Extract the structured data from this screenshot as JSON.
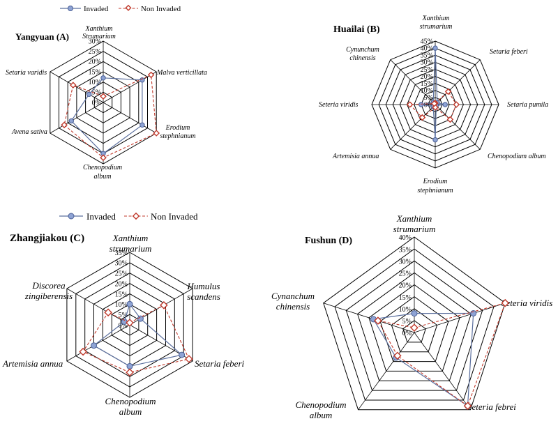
{
  "legend": {
    "invaded": "Invaded",
    "non_invaded": "Non Invaded"
  },
  "colors": {
    "invaded_line": "#5b6f9e",
    "invaded_marker": "#8ea3d4",
    "non_invaded": "#c0392b"
  },
  "chart_data": [
    {
      "type": "radar",
      "title": "Yangyuan (A)",
      "tick_labels": [
        "0%",
        "5%",
        "10%",
        "15%",
        "20%",
        "25%",
        "30%"
      ],
      "rmax": 30,
      "categories": [
        "Xanthium Strumarium",
        "Malva verticillata",
        "Erodium stephnianum",
        "Chenopodium album",
        "Avena sativa",
        "Setaria varidis"
      ],
      "series": [
        {
          "name": "Invaded",
          "values": [
            12,
            22,
            22,
            25,
            18,
            8
          ]
        },
        {
          "name": "Non Invaded",
          "values": [
            3,
            27,
            30,
            27,
            22,
            17
          ]
        }
      ]
    },
    {
      "type": "radar",
      "title": "Huailai (B)",
      "tick_labels": [
        "0%",
        "5%",
        "10%",
        "15%",
        "20%",
        "25%",
        "30%",
        "35%",
        "40%",
        "45%"
      ],
      "rmax": 45,
      "categories": [
        "Xanthium strumarium",
        "Setaria feberi",
        "Setaria pumila",
        "Chenopodium album",
        "Erodium stephnianum",
        "Artemisia annua",
        "Seteria viridis",
        "Cynunchum chinensis"
      ],
      "series": [
        {
          "name": "Invaded",
          "values": [
            40,
            2,
            7,
            1,
            25,
            2,
            10,
            2
          ]
        },
        {
          "name": "Non Invaded",
          "values": [
            1,
            13,
            15,
            15,
            2,
            13,
            18,
            1
          ]
        }
      ]
    },
    {
      "type": "radar",
      "title": "Zhangjiakou (C)",
      "tick_labels": [
        "0%",
        "5%",
        "10%",
        "15%",
        "20%",
        "25%",
        "30%",
        "35%"
      ],
      "rmax": 35,
      "categories": [
        "Xanthium strumarium",
        "Humulus scandens",
        "Setaria feberi",
        "Chenopodium album",
        "Artemisia annua",
        "Discorea zingiberensis"
      ],
      "series": [
        {
          "name": "Invaded",
          "values": [
            10,
            6,
            29,
            20,
            20,
            3
          ]
        },
        {
          "name": "Non Invaded",
          "values": [
            1,
            19,
            33,
            23,
            26,
            12
          ]
        }
      ]
    },
    {
      "type": "radar",
      "title": "Fushun (D)",
      "tick_labels": [
        "0%",
        "5%",
        "10%",
        "15%",
        "20%",
        "25%",
        "30%",
        "35%",
        "40%"
      ],
      "rmax": 40,
      "categories": [
        "Xanthium strumarium",
        "Seteria viridis",
        "Seteria febrei",
        "Chenopodium album",
        "Cynanchum chinensis"
      ],
      "series": [
        {
          "name": "Invaded",
          "values": [
            8,
            26,
            38,
            13,
            18
          ]
        },
        {
          "name": "Non Invaded",
          "values": [
            2,
            40,
            38,
            12,
            16
          ]
        }
      ]
    }
  ]
}
